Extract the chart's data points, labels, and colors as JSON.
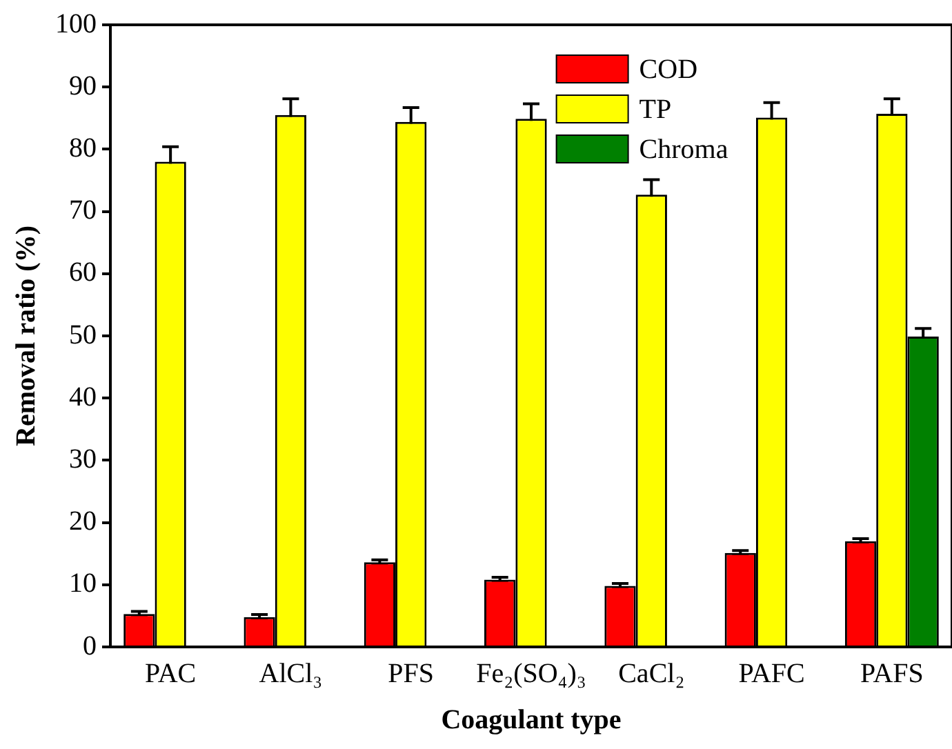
{
  "chart_data": {
    "type": "bar",
    "xlabel": "Coagulant type",
    "ylabel": "Removal ratio (%)",
    "categories": [
      "PAC",
      "AlCl₃",
      "PFS",
      "Fe₂(SO₄)₃",
      "CaCl₂",
      "PAFC",
      "PAFS"
    ],
    "series": [
      {
        "name": "COD",
        "color": "#ff0000",
        "values": [
          5.3,
          4.8,
          13.6,
          10.8,
          9.8,
          15.1,
          17.0
        ],
        "errors": [
          0.4,
          0.4,
          0.4,
          0.4,
          0.4,
          0.4,
          0.4
        ]
      },
      {
        "name": "TP",
        "color": "#ffff00",
        "values": [
          78.0,
          85.5,
          84.4,
          84.9,
          72.7,
          85.1,
          85.7
        ],
        "errors": [
          2.4,
          2.6,
          2.3,
          2.4,
          2.4,
          2.4,
          2.4
        ]
      },
      {
        "name": "Chroma",
        "color": "#008000",
        "values": [
          null,
          null,
          null,
          null,
          null,
          null,
          49.9
        ],
        "errors": [
          null,
          null,
          null,
          null,
          null,
          null,
          1.3
        ]
      }
    ],
    "ylim": [
      0,
      100
    ],
    "yticks": [
      0,
      10,
      20,
      30,
      40,
      50,
      60,
      70,
      80,
      90,
      100
    ],
    "grid": false,
    "legend": "top"
  }
}
